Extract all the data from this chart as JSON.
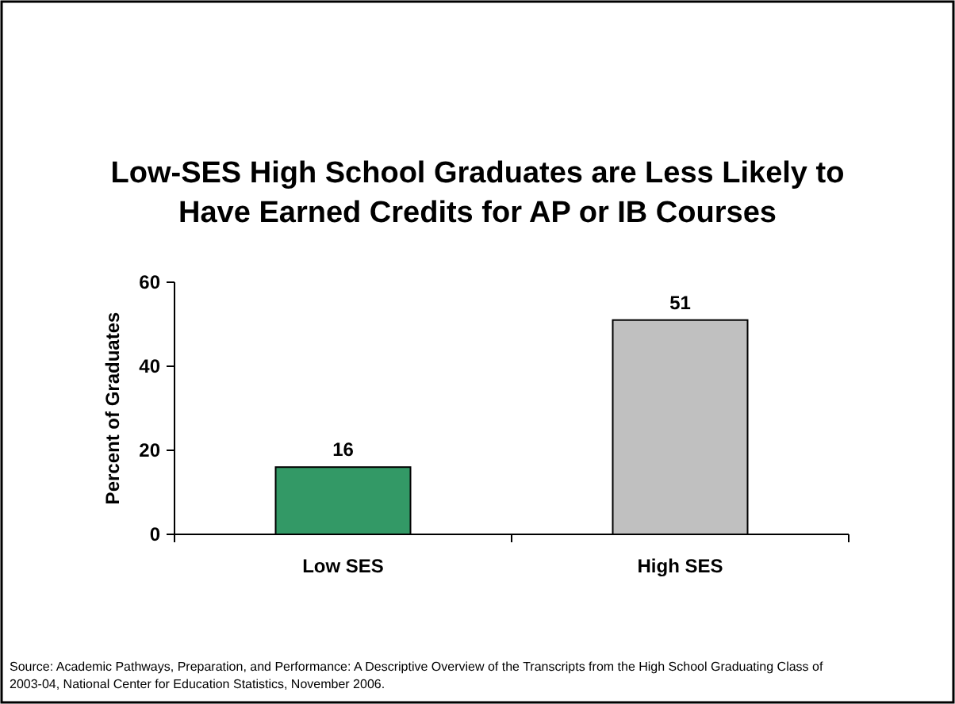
{
  "chart_data": {
    "type": "bar",
    "title": "Low-SES High School Graduates are Less Likely to Have Earned Credits for AP or IB Courses",
    "ylabel": "Percent of Graduates",
    "categories": [
      "Low SES",
      "High SES"
    ],
    "values": [
      16,
      51
    ],
    "colors": [
      "#339966",
      "#c0c0c0"
    ],
    "ylim": [
      0,
      60
    ],
    "yticks": [
      0,
      20,
      40,
      60
    ],
    "data_labels": true,
    "annotations": [
      "Source:  Academic Pathways, Preparation, and Performance: A Descriptive Overview of the Transcripts from the High School Graduating Class of 2003-04, National Center for Education Statistics, November 2006."
    ]
  }
}
